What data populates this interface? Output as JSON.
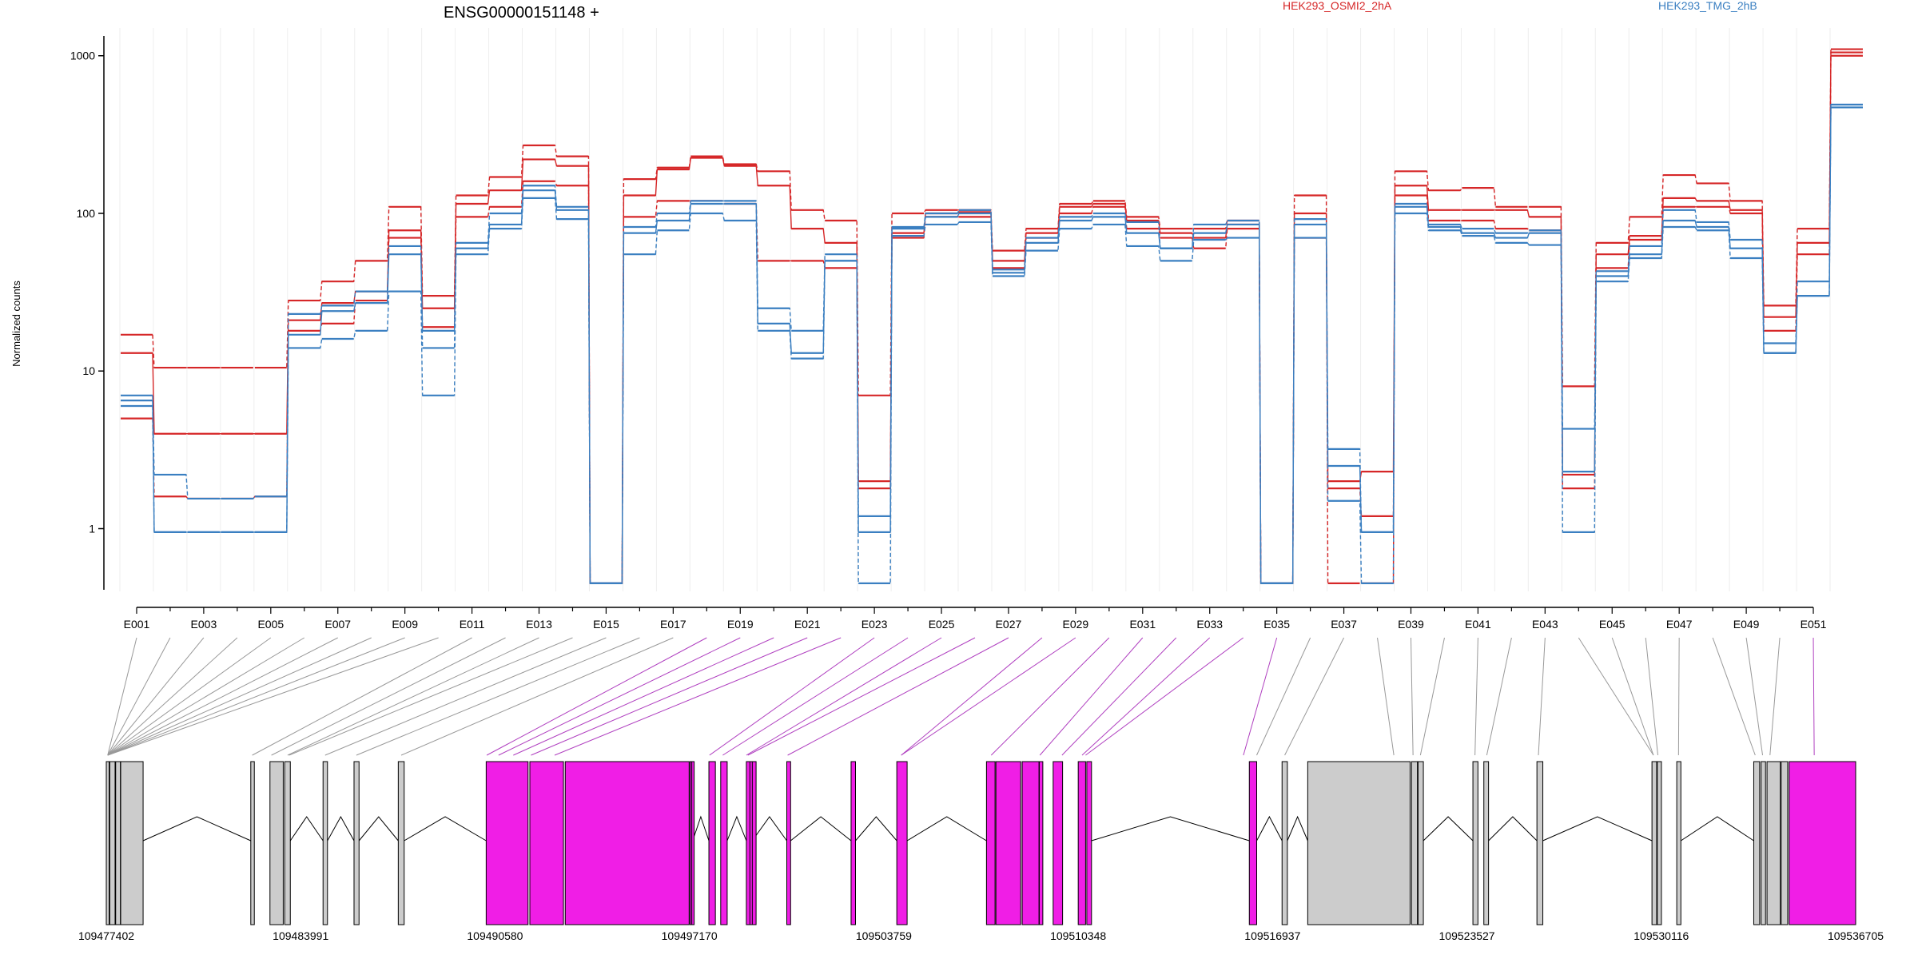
{
  "chart_data": {
    "type": "line",
    "title": "ENSG00000151148 +",
    "ylabel": "Normalized counts",
    "yscale": "log",
    "ylim": [
      0.4,
      1500
    ],
    "y_ticks": [
      1,
      10,
      100,
      1000
    ],
    "y_tick_labels": [
      "1",
      "10",
      "100",
      "1000"
    ],
    "grid": "vertical lines at exon boundaries",
    "legend": "top",
    "legend_entries": [
      "HEK293_OSMI2_2hA",
      "HEK293_TMG_2hB"
    ],
    "colors": {
      "condition_a": "#d62728",
      "condition_b": "#3a7fc1",
      "highlight_exon": "#f01ee6",
      "other_exon": "#cccccc",
      "connector_highlight": "#b040c0",
      "connector_other": "#999999"
    },
    "exon_count": 51,
    "x_tick_labels": [
      "E001",
      "E003",
      "E005",
      "E007",
      "E009",
      "E011",
      "E013",
      "E015",
      "E017",
      "E019",
      "E021",
      "E023",
      "E025",
      "E027",
      "E029",
      "E031",
      "E033",
      "E035",
      "E037",
      "E039",
      "E041",
      "E043",
      "E045",
      "E047",
      "E049",
      "E051"
    ],
    "series": [
      {
        "condition": "HEK293_OSMI2_2hA",
        "style": "dashed",
        "values": [
          17,
          10.5,
          10.5,
          10.5,
          10.5,
          28,
          37,
          50,
          110,
          30,
          130,
          170,
          270,
          230,
          0.45,
          165,
          195,
          230,
          205,
          185,
          105,
          90,
          7,
          100,
          105,
          105,
          58,
          80,
          115,
          120,
          95,
          80,
          80,
          90,
          0.45,
          130,
          0.45,
          0.45,
          185,
          140,
          145,
          110,
          110,
          8,
          65,
          95,
          175,
          155,
          120,
          26,
          80,
          1100
        ]
      },
      {
        "condition": "HEK293_OSMI2_2hA",
        "style": "solid",
        "values": [
          13,
          4,
          4,
          4,
          4,
          21,
          27,
          32,
          78,
          25,
          115,
          140,
          220,
          200,
          0.45,
          130,
          190,
          225,
          200,
          150,
          80,
          65,
          2,
          75,
          100,
          102,
          50,
          75,
          110,
          115,
          90,
          75,
          70,
          85,
          0.45,
          100,
          2,
          2.3,
          150,
          105,
          105,
          105,
          95,
          2.2,
          55,
          72,
          125,
          120,
          105,
          22,
          65,
          1050
        ]
      },
      {
        "condition": "HEK293_OSMI2_2hA",
        "style": "dashed",
        "values": [
          5,
          1.6,
          1.55,
          1.55,
          1.6,
          18,
          20,
          28,
          70,
          19,
          95,
          110,
          160,
          150,
          0.45,
          95,
          120,
          120,
          115,
          50,
          50,
          45,
          1.8,
          70,
          95,
          95,
          45,
          70,
          100,
          110,
          80,
          70,
          60,
          80,
          0.45,
          70,
          1.8,
          1.2,
          130,
          90,
          90,
          80,
          78,
          1.8,
          45,
          68,
          110,
          110,
          100,
          18,
          55,
          1000
        ]
      },
      {
        "condition": "HEK293_TMG_2hB",
        "style": "dashed",
        "values": [
          7,
          2.2,
          1.55,
          1.55,
          1.6,
          23,
          26,
          32,
          62,
          14,
          65,
          100,
          150,
          110,
          0.45,
          82,
          100,
          120,
          120,
          25,
          18,
          55,
          1.2,
          82,
          100,
          105,
          44,
          70,
          95,
          100,
          88,
          60,
          85,
          90,
          0.45,
          92,
          3.2,
          0.95,
          115,
          85,
          80,
          75,
          78,
          4.3,
          43,
          62,
          105,
          88,
          68,
          15,
          37,
          490
        ]
      },
      {
        "condition": "HEK293_TMG_2hB",
        "style": "solid",
        "values": [
          6.5,
          0.95,
          0.95,
          0.95,
          0.95,
          17,
          24,
          27,
          55,
          18,
          60,
          85,
          140,
          105,
          0.45,
          75,
          90,
          115,
          115,
          20,
          13,
          50,
          0.95,
          80,
          95,
          100,
          42,
          65,
          90,
          95,
          75,
          60,
          75,
          85,
          0.45,
          85,
          2.5,
          0.95,
          110,
          82,
          75,
          70,
          75,
          2.3,
          40,
          55,
          90,
          82,
          60,
          13,
          30,
          470
        ]
      },
      {
        "condition": "HEK293_TMG_2hB",
        "style": "dashed",
        "values": [
          6,
          0.95,
          0.95,
          0.95,
          0.95,
          14,
          16,
          18,
          32,
          7,
          55,
          80,
          125,
          92,
          0.45,
          55,
          78,
          100,
          90,
          18,
          12,
          50,
          0.45,
          72,
          85,
          88,
          40,
          58,
          80,
          85,
          62,
          50,
          68,
          70,
          0.45,
          70,
          1.5,
          0.45,
          100,
          78,
          72,
          65,
          63,
          0.95,
          37,
          52,
          82,
          78,
          52,
          13,
          30,
          470
        ]
      }
    ],
    "exon_highlighted": [
      false,
      false,
      false,
      false,
      false,
      false,
      false,
      false,
      false,
      false,
      false,
      false,
      true,
      true,
      true,
      true,
      true,
      true,
      true,
      true,
      true,
      true,
      true,
      true,
      true,
      true,
      true,
      true,
      true,
      true,
      true,
      true,
      false,
      false,
      true,
      false,
      false,
      false,
      false,
      false,
      false,
      false,
      false,
      false,
      false,
      false,
      false,
      false,
      false,
      false,
      true
    ],
    "genomic_axis": {
      "start": 109477402,
      "end": 109536705,
      "tick_labels": [
        "109477402",
        "109483991",
        "109490580",
        "109497170",
        "109503759",
        "109510348",
        "109516937",
        "109523527",
        "109530116",
        "109536705"
      ]
    }
  }
}
